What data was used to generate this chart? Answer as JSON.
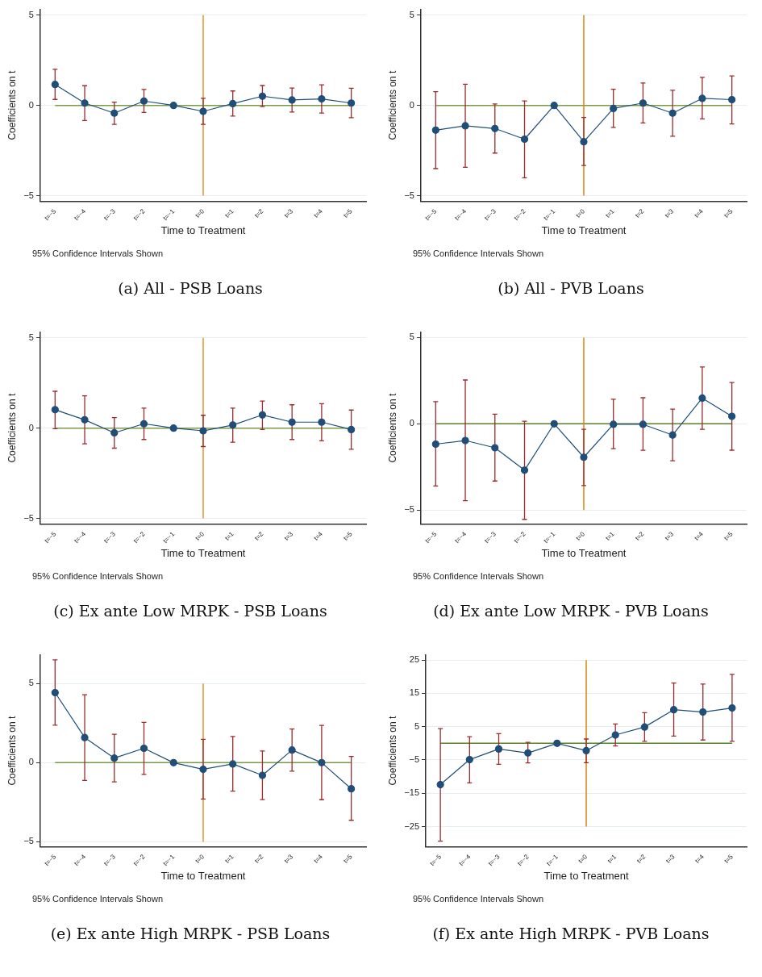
{
  "chart_data": [
    {
      "type": "line",
      "title": "(a) All - PSB Loans",
      "xlabel": "Time to Treatment",
      "ylabel": "Coefficients on t",
      "annotations": [
        "95% Confidence Intervals Shown"
      ],
      "categories": [
        "t=−5",
        "t=−4",
        "t=−3",
        "t=−2",
        "t=−1",
        "t=0",
        "t=1",
        "t=2",
        "t=3",
        "t=4",
        "t=5"
      ],
      "series": [
        {
          "color": "#1f4e79",
          "values": [
            1.16,
            0.13,
            -0.43,
            0.24,
            0,
            -0.33,
            0.1,
            0.51,
            0.3,
            0.36,
            0.13
          ],
          "errors": [
            [
              0.33,
              2.0
            ],
            [
              -0.84,
              1.09
            ],
            [
              -1.05,
              0.18
            ],
            [
              -0.39,
              0.88
            ],
            null,
            [
              -1.05,
              0.39
            ],
            [
              -0.59,
              0.8
            ],
            [
              -0.07,
              1.1
            ],
            [
              -0.37,
              0.96
            ],
            [
              -0.42,
              1.14
            ],
            [
              -0.68,
              0.95
            ]
          ]
        }
      ],
      "ylim": [
        -5.3,
        5.3
      ],
      "yticks": [
        -5,
        0,
        5
      ],
      "grid": "y",
      "marker": "circle",
      "legend": false,
      "ref_lines": [
        {
          "axis": "y",
          "value": 0,
          "color": "#7a9a4a"
        },
        {
          "axis": "x",
          "value": "t=0",
          "color": "#e8922a"
        }
      ]
    },
    {
      "type": "line",
      "title": "(b) All - PVB Loans",
      "xlabel": "Time to Treatment",
      "ylabel": "Coefficients on t",
      "annotations": [
        "95% Confidence Intervals Shown"
      ],
      "categories": [
        "t=−5",
        "t=−4",
        "t=−3",
        "t=−2",
        "t=−1",
        "t=0",
        "t=1",
        "t=2",
        "t=3",
        "t=4",
        "t=5"
      ],
      "series": [
        {
          "color": "#1f4e79",
          "values": [
            -1.37,
            -1.13,
            -1.28,
            -1.87,
            0,
            -2.01,
            -0.17,
            0.13,
            -0.43,
            0.39,
            0.32
          ],
          "errors": [
            [
              -3.5,
              0.76
            ],
            [
              -3.43,
              1.17
            ],
            [
              -2.64,
              0.08
            ],
            [
              -4.01,
              0.25
            ],
            null,
            [
              -3.33,
              -0.67
            ],
            [
              -1.22,
              0.89
            ],
            [
              -0.97,
              1.24
            ],
            [
              -1.71,
              0.84
            ],
            [
              -0.75,
              1.55
            ],
            [
              -1.03,
              1.63
            ]
          ]
        }
      ],
      "ylim": [
        -5.3,
        5.3
      ],
      "yticks": [
        -5,
        0,
        5
      ],
      "grid": "y",
      "marker": "circle",
      "legend": false,
      "ref_lines": [
        {
          "axis": "y",
          "value": 0,
          "color": "#7a9a4a"
        },
        {
          "axis": "x",
          "value": "t=0",
          "color": "#d9860f"
        }
      ]
    },
    {
      "type": "line",
      "title": "(c) Ex ante Low MRPK - PSB Loans",
      "xlabel": "Time to Treatment",
      "ylabel": "Coefficients on t",
      "annotations": [
        "95% Confidence Intervals Shown"
      ],
      "categories": [
        "t=−5",
        "t=−4",
        "t=−3",
        "t=−2",
        "t=−1",
        "t=0",
        "t=1",
        "t=2",
        "t=3",
        "t=4",
        "t=5"
      ],
      "series": [
        {
          "color": "#1f4e79",
          "values": [
            1.02,
            0.46,
            -0.26,
            0.24,
            0,
            -0.15,
            0.17,
            0.73,
            0.33,
            0.33,
            -0.08
          ],
          "errors": [
            [
              -0.03,
              2.04
            ],
            [
              -0.87,
              1.79
            ],
            [
              -1.11,
              0.58
            ],
            [
              -0.63,
              1.11
            ],
            null,
            [
              -1.02,
              0.71
            ],
            [
              -0.78,
              1.11
            ],
            [
              -0.08,
              1.5
            ],
            [
              -0.63,
              1.29
            ],
            [
              -0.7,
              1.35
            ],
            [
              -1.17,
              1.0
            ]
          ]
        }
      ],
      "ylim": [
        -5.3,
        5.3
      ],
      "yticks": [
        -5,
        0,
        5
      ],
      "grid": "y",
      "marker": "circle",
      "legend": false,
      "ref_lines": [
        {
          "axis": "y",
          "value": 0,
          "color": "#7a9a4a"
        },
        {
          "axis": "x",
          "value": "t=0",
          "color": "#e8922a"
        }
      ]
    },
    {
      "type": "line",
      "title": "(d) Ex ante Low MRPK - PVB Loans",
      "xlabel": "Time to Treatment",
      "ylabel": "Coefficients on t",
      "annotations": [
        "95% Confidence Intervals Shown"
      ],
      "categories": [
        "t=−5",
        "t=−4",
        "t=−3",
        "t=−2",
        "t=−1",
        "t=0",
        "t=1",
        "t=2",
        "t=3",
        "t=4",
        "t=5"
      ],
      "series": [
        {
          "color": "#1f4e79",
          "values": [
            -1.18,
            -0.97,
            -1.39,
            -2.69,
            0,
            -1.94,
            -0.03,
            -0.03,
            -0.65,
            1.49,
            0.43
          ],
          "errors": [
            [
              -3.61,
              1.28
            ],
            [
              -4.46,
              2.54
            ],
            [
              -3.32,
              0.56
            ],
            [
              -5.54,
              0.15
            ],
            null,
            [
              -3.58,
              -0.32
            ],
            [
              -1.44,
              1.42
            ],
            [
              -1.54,
              1.51
            ],
            [
              -2.14,
              0.85
            ],
            [
              -0.32,
              3.29
            ],
            [
              -1.53,
              2.39
            ]
          ]
        }
      ],
      "ylim": [
        -5.8,
        5.3
      ],
      "yticks": [
        -5,
        0,
        5
      ],
      "grid": "y",
      "marker": "circle",
      "legend": false,
      "ref_lines": [
        {
          "axis": "y",
          "value": 0,
          "color": "#5a7f2a"
        },
        {
          "axis": "x",
          "value": "t=0",
          "color": "#d9860f"
        }
      ]
    },
    {
      "type": "line",
      "title": "(e) Ex ante High MRPK - PSB Loans",
      "xlabel": "Time to Treatment",
      "ylabel": "Coefficients on t",
      "annotations": [
        "95% Confidence Intervals Shown"
      ],
      "categories": [
        "t=−5",
        "t=−4",
        "t=−3",
        "t=−2",
        "t=−1",
        "t=0",
        "t=1",
        "t=2",
        "t=3",
        "t=4",
        "t=5"
      ],
      "series": [
        {
          "color": "#1f4e79",
          "values": [
            4.43,
            1.59,
            0.29,
            0.91,
            0,
            -0.42,
            -0.08,
            -0.8,
            0.8,
            0,
            -1.65
          ],
          "errors": [
            [
              2.37,
              6.5
            ],
            [
              -1.12,
              4.29
            ],
            [
              -1.21,
              1.8
            ],
            [
              -0.74,
              2.55
            ],
            null,
            [
              -2.3,
              1.48
            ],
            [
              -1.8,
              1.66
            ],
            [
              -2.33,
              0.74
            ],
            [
              -0.54,
              2.13
            ],
            [
              -2.34,
              2.36
            ],
            [
              -3.64,
              0.39
            ]
          ]
        }
      ],
      "ylim": [
        -5.3,
        6.8
      ],
      "yticks": [
        -5,
        0,
        5
      ],
      "grid": "y",
      "marker": "circle",
      "legend": false,
      "ref_lines": [
        {
          "axis": "y",
          "value": 0,
          "color": "#7a9a4a"
        },
        {
          "axis": "x",
          "value": "t=0",
          "color": "#e8922a"
        }
      ]
    },
    {
      "type": "line",
      "title": "(f) Ex ante High MRPK - PVB Loans",
      "xlabel": "Time to Treatment",
      "ylabel": "Coefficients on t",
      "annotations": [
        "95% Confidence Intervals Shown"
      ],
      "categories": [
        "t=−5",
        "t=−4",
        "t=−3",
        "t=−2",
        "t=−1",
        "t=0",
        "t=1",
        "t=2",
        "t=3",
        "t=4",
        "t=5"
      ],
      "series": [
        {
          "color": "#1f4e79",
          "values": [
            -12.4,
            -4.9,
            -1.7,
            -2.9,
            0,
            -2.2,
            2.5,
            4.9,
            10.1,
            9.4,
            10.6
          ],
          "errors": [
            [
              -29.4,
              4.4
            ],
            [
              -11.9,
              2.0
            ],
            [
              -6.3,
              2.9
            ],
            [
              -5.9,
              0.3
            ],
            null,
            [
              -5.8,
              1.3
            ],
            [
              -0.8,
              5.8
            ],
            [
              0.6,
              9.2
            ],
            [
              2.2,
              18.1
            ],
            [
              1.0,
              17.8
            ],
            [
              0.6,
              20.7
            ]
          ]
        }
      ],
      "ylim": [
        -31,
        26.5
      ],
      "yticks": [
        -25,
        -15,
        -5,
        5,
        15,
        25
      ],
      "grid": "y",
      "marker": "circle",
      "legend": false,
      "ref_lines": [
        {
          "axis": "y",
          "value": 0,
          "color": "#5a7f2a"
        },
        {
          "axis": "x",
          "value": "t=0",
          "color": "#d9860f"
        }
      ]
    }
  ]
}
